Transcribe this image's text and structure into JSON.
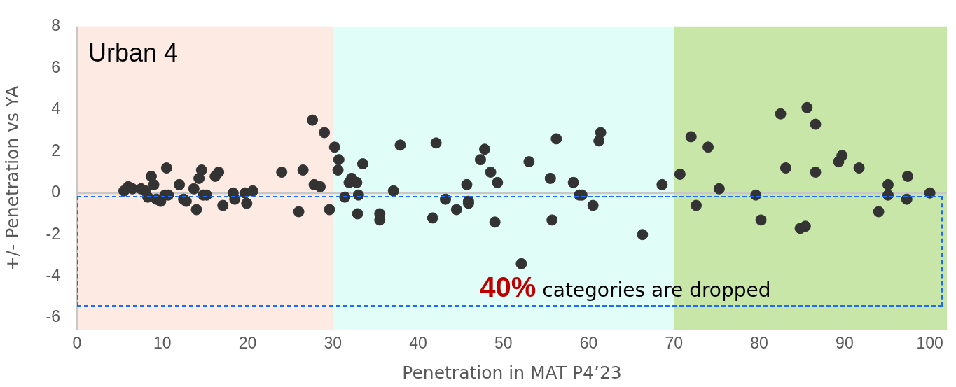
{
  "chart_data": {
    "type": "scatter",
    "title": "Urban 4",
    "xlabel": "Penetration in MAT P4’23",
    "ylabel": "+/- Penetration vs YA",
    "annotations": [
      "40% categories are dropped"
    ],
    "xlim": [
      0,
      102
    ],
    "xticks": [
      0,
      10,
      20,
      30,
      40,
      50,
      60,
      70,
      80,
      90,
      100
    ],
    "ylim": [
      -6.6,
      8
    ],
    "yticks": [
      -6,
      -4,
      -2,
      0,
      2,
      4,
      6,
      8
    ],
    "grid": false,
    "legend": false,
    "marker": "circle",
    "bands": [
      {
        "axis": "x",
        "from": 0,
        "to": 30,
        "color": "#fdeae3"
      },
      {
        "axis": "x",
        "from": 30,
        "to": 70,
        "color": "#e1fdf8"
      },
      {
        "axis": "x",
        "from": 70,
        "to": 102,
        "color": "#c9e6a9"
      }
    ],
    "ref_lines": [
      {
        "axis": "y",
        "value": 0,
        "color": "#c8c8c8"
      }
    ],
    "series": [
      {
        "color": "#333333",
        "x": [
          5.5,
          6,
          6.5,
          7.5,
          8,
          8.3,
          8.7,
          9,
          9.3,
          9.8,
          10.3,
          10.5,
          10.7,
          12,
          12.5,
          12.8,
          13.7,
          14,
          14.3,
          14.6,
          14.8,
          15.2,
          16.2,
          16.6,
          17.1,
          18.3,
          18.5,
          19.7,
          19.9,
          20.6,
          24,
          26,
          26.5,
          27.6,
          27.8,
          28.5,
          29,
          29.6,
          30.2,
          30.6,
          30.7,
          31.4,
          31.9,
          32.2,
          32.8,
          32.9,
          33,
          33.5,
          35.5,
          35.5,
          37.1,
          37.9,
          41.7,
          42.1,
          43.2,
          44.5,
          45.7,
          45.9,
          45.9,
          47.3,
          47.8,
          48.5,
          49,
          49.3,
          52.1,
          53,
          55.5,
          55.7,
          56.2,
          58.2,
          58.9,
          59.2,
          60.5,
          61.2,
          61.4,
          66.3,
          68.6,
          70.7,
          72,
          72.6,
          74,
          75.3,
          79.6,
          80.2,
          82.5,
          83.1,
          84.8,
          85.4,
          85.6,
          86.6,
          86.6,
          89.3,
          89.7,
          91.7,
          94,
          95.1,
          95.1,
          97.3,
          97.4,
          100
        ],
        "values": [
          0.1,
          0.3,
          0.2,
          0.2,
          0.1,
          -0.2,
          0.8,
          0.4,
          -0.3,
          -0.4,
          -0.1,
          1.2,
          -0.1,
          0.4,
          -0.3,
          -0.4,
          0.2,
          -0.8,
          0.7,
          1.1,
          -0.1,
          -0.1,
          0.8,
          1,
          -0.6,
          0,
          -0.3,
          0,
          -0.5,
          0.1,
          1,
          -0.9,
          1.1,
          3.5,
          0.4,
          0.3,
          2.9,
          -0.8,
          2.2,
          1.1,
          1.6,
          -0.2,
          0.5,
          0.7,
          0.5,
          -1,
          -0.1,
          1.4,
          -1,
          -1.3,
          0.1,
          2.3,
          -1.2,
          2.4,
          -0.3,
          -0.8,
          0.4,
          -0.4,
          -0.5,
          1.6,
          2.1,
          1,
          -1.4,
          0.5,
          -3.4,
          1.5,
          0.7,
          -1.3,
          2.6,
          0.5,
          -0.1,
          -0.1,
          -0.6,
          2.5,
          2.9,
          -2,
          0.4,
          0.9,
          2.7,
          -0.6,
          2.2,
          0.2,
          -0.1,
          -1.3,
          3.8,
          1.2,
          -1.7,
          -1.6,
          4.1,
          3.3,
          1,
          1.5,
          1.8,
          1.2,
          -0.9,
          0.4,
          -0.1,
          -0.3,
          0.8,
          0
        ]
      }
    ]
  }
}
